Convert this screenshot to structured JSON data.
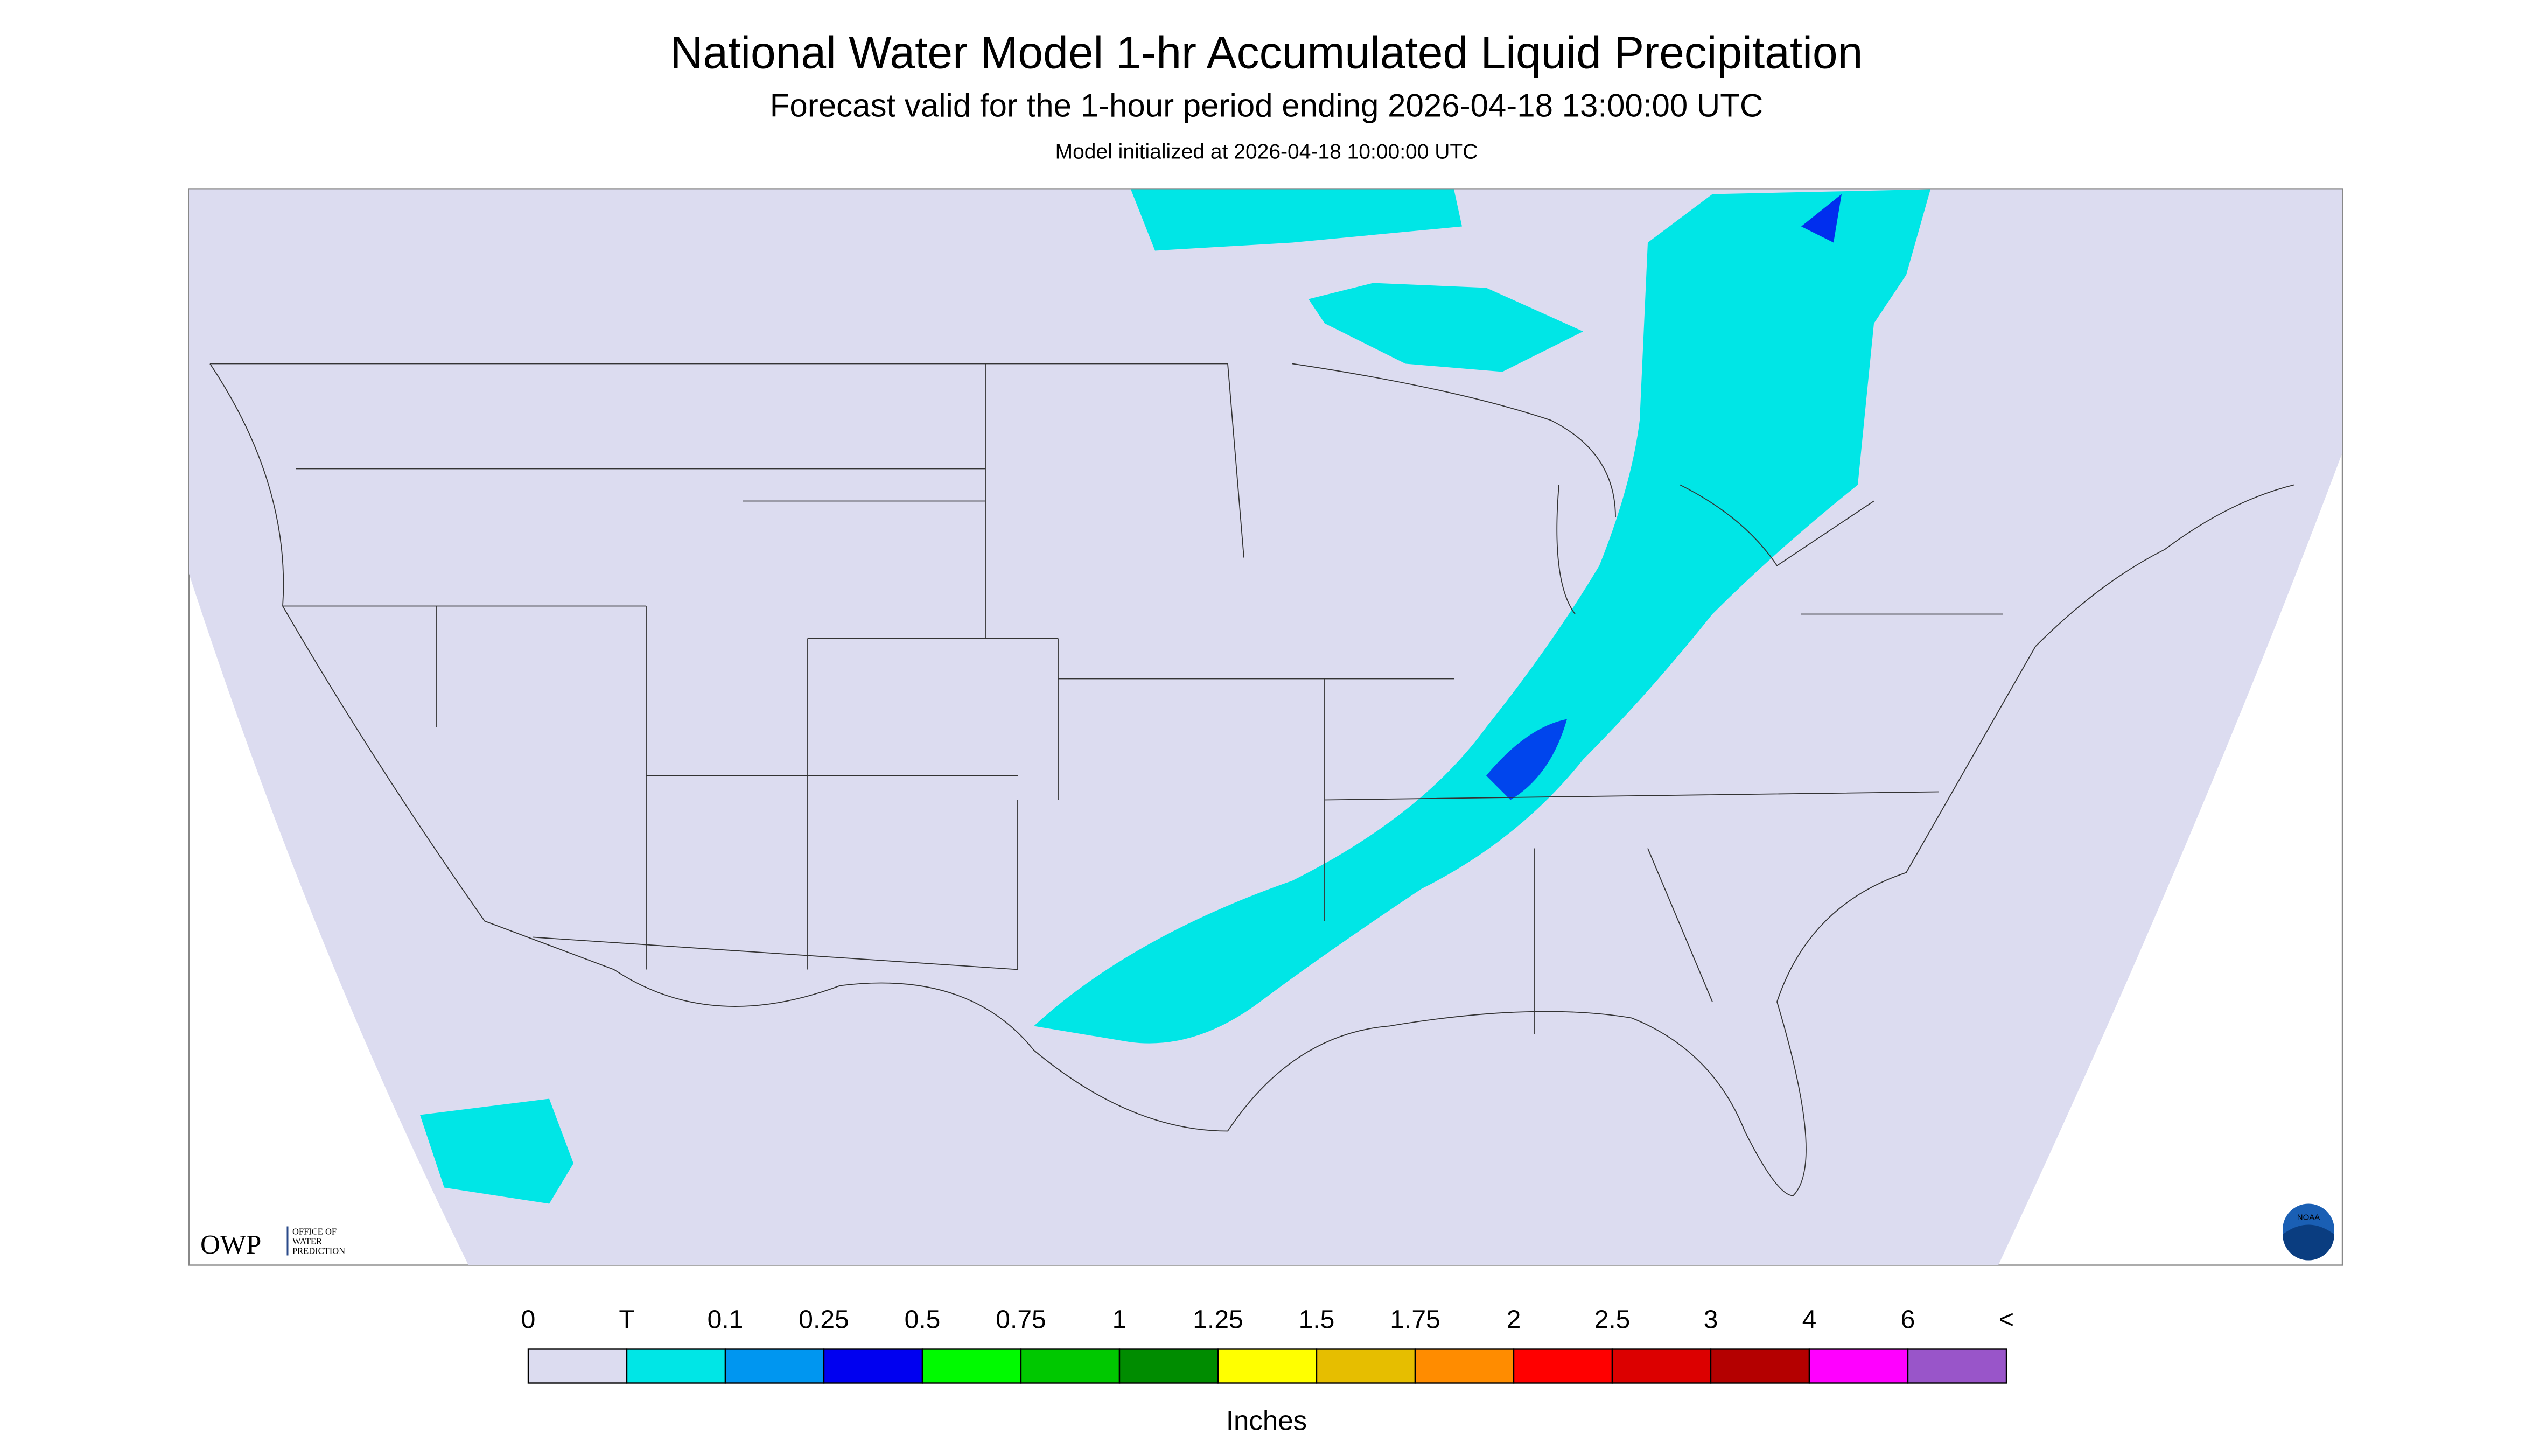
{
  "header": {
    "title": "National Water Model 1-hr Accumulated Liquid Precipitation",
    "subtitle": "Forecast valid for the 1-hour period ending 2026-04-18 13:00:00 UTC",
    "init": "Model initialized at 2026-04-18 10:00:00 UTC"
  },
  "logo": {
    "owp": "OWP",
    "line1": "OFFICE OF",
    "line2": "WATER",
    "line3": "PREDICTION",
    "noaa": "NOAA"
  },
  "legend": {
    "labels": [
      "0",
      "T",
      "0.1",
      "0.25",
      "0.5",
      "0.75",
      "1",
      "1.25",
      "1.5",
      "1.75",
      "2",
      "2.5",
      "3",
      "4",
      "6",
      "<"
    ],
    "colors": [
      "#dcdcf0",
      "#00e6e6",
      "#0096f0",
      "#0000f0",
      "#00fa00",
      "#00c800",
      "#008c00",
      "#ffff00",
      "#e6be00",
      "#ff8c00",
      "#ff0000",
      "#dc0000",
      "#b40000",
      "#ff00ff",
      "#9955c9"
    ],
    "unit": "Inches"
  }
}
